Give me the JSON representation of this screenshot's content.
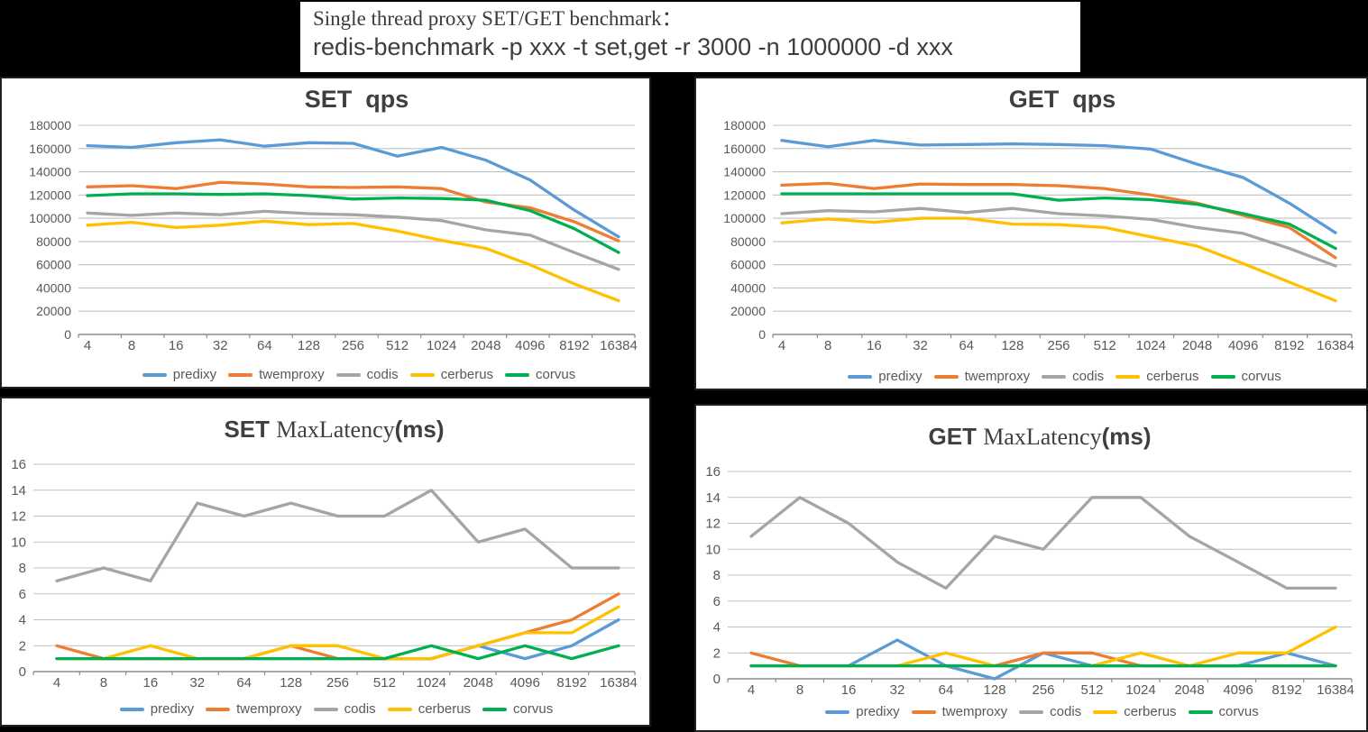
{
  "header": {
    "line1": "Single thread proxy SET/GET benchmark：",
    "line2": "redis-benchmark -p xxx -t set,get -r 3000 -n 1000000 -d xxx"
  },
  "colors": {
    "predixy": "#5B9BD5",
    "twemproxy": "#ED7D31",
    "codis": "#A5A5A5",
    "cerberus": "#FFC000",
    "corvus": "#00B050",
    "grid": "#C0C0C0",
    "axis": "#8C8C8C",
    "tick_label": "#595959",
    "title_text": "#3f3f3f",
    "legend_text": "#595959"
  },
  "legend": [
    "predixy",
    "twemproxy",
    "codis",
    "cerberus",
    "corvus"
  ],
  "chart_data": [
    {
      "id": "set-qps",
      "type": "line",
      "kind": "qps",
      "title_parts": [
        {
          "text": "SET  qps",
          "style": "bold"
        }
      ],
      "xlabel": "",
      "ylabel": "",
      "ylim": [
        0,
        180000
      ],
      "ytick_step": 20000,
      "grid": true,
      "legend_position": "bottom",
      "categories": [
        "4",
        "8",
        "16",
        "32",
        "64",
        "128",
        "256",
        "512",
        "1024",
        "2048",
        "4096",
        "8192",
        "16384"
      ],
      "series": [
        {
          "name": "predixy",
          "values": [
            162500,
            161000,
            165000,
            167500,
            162000,
            165000,
            164500,
            153500,
            161000,
            150000,
            133000,
            107000,
            84000
          ]
        },
        {
          "name": "twemproxy",
          "values": [
            127000,
            128000,
            125500,
            131000,
            129500,
            127000,
            126500,
            127000,
            125500,
            114000,
            109000,
            97000,
            80500
          ]
        },
        {
          "name": "codis",
          "values": [
            104500,
            102500,
            104500,
            103000,
            106000,
            104000,
            103000,
            101000,
            98000,
            90000,
            85500,
            70500,
            56000
          ]
        },
        {
          "name": "cerberus",
          "values": [
            94000,
            96500,
            92000,
            94000,
            97500,
            94500,
            95500,
            89000,
            81000,
            74000,
            60000,
            43500,
            29000
          ]
        },
        {
          "name": "corvus",
          "values": [
            119500,
            121000,
            121000,
            120500,
            121000,
            119500,
            116500,
            117500,
            117000,
            115500,
            106500,
            91000,
            70500
          ]
        }
      ]
    },
    {
      "id": "get-qps",
      "type": "line",
      "kind": "qps",
      "title_parts": [
        {
          "text": "GET  qps",
          "style": "bold"
        }
      ],
      "xlabel": "",
      "ylabel": "",
      "ylim": [
        0,
        180000
      ],
      "ytick_step": 20000,
      "grid": true,
      "legend_position": "bottom",
      "categories": [
        "4",
        "8",
        "16",
        "32",
        "64",
        "128",
        "256",
        "512",
        "1024",
        "2048",
        "4096",
        "8192",
        "16384"
      ],
      "series": [
        {
          "name": "predixy",
          "values": [
            167000,
            161500,
            167000,
            163000,
            163500,
            164000,
            163500,
            162500,
            159500,
            146500,
            135000,
            113000,
            87500
          ]
        },
        {
          "name": "twemproxy",
          "values": [
            128500,
            130000,
            125500,
            129500,
            129000,
            129000,
            128000,
            125500,
            120000,
            113000,
            102500,
            92000,
            66000
          ]
        },
        {
          "name": "codis",
          "values": [
            104000,
            106500,
            105500,
            108500,
            105000,
            108500,
            104000,
            102000,
            99000,
            92000,
            87000,
            74000,
            59000
          ]
        },
        {
          "name": "cerberus",
          "values": [
            96000,
            99500,
            96500,
            100000,
            100000,
            95000,
            94500,
            92000,
            84000,
            76000,
            61000,
            45000,
            29000
          ]
        },
        {
          "name": "corvus",
          "values": [
            121000,
            121000,
            121000,
            121000,
            121000,
            121000,
            115500,
            117500,
            116000,
            112000,
            104000,
            95000,
            74000
          ]
        }
      ]
    },
    {
      "id": "set-maxlatency",
      "type": "line",
      "kind": "lat",
      "title_parts": [
        {
          "text": "SET ",
          "style": "bold"
        },
        {
          "text": "MaxLatency",
          "style": "serif"
        },
        {
          "text": "(ms)",
          "style": "bold"
        }
      ],
      "xlabel": "",
      "ylabel": "",
      "ylim": [
        0,
        16
      ],
      "ytick_step": 2,
      "grid": true,
      "legend_position": "bottom",
      "categories": [
        "4",
        "8",
        "16",
        "32",
        "64",
        "128",
        "256",
        "512",
        "1024",
        "2048",
        "4096",
        "8192",
        "16384"
      ],
      "series": [
        {
          "name": "predixy",
          "values": [
            1,
            1,
            1,
            1,
            1,
            1,
            1,
            1,
            1,
            2,
            1,
            2,
            4
          ]
        },
        {
          "name": "twemproxy",
          "values": [
            2,
            1,
            1,
            1,
            1,
            2,
            1,
            1,
            1,
            2,
            3,
            4,
            6
          ]
        },
        {
          "name": "codis",
          "values": [
            7,
            8,
            7,
            13,
            12,
            13,
            12,
            12,
            14,
            10,
            11,
            8,
            8
          ]
        },
        {
          "name": "cerberus",
          "values": [
            1,
            1,
            2,
            1,
            1,
            2,
            2,
            1,
            1,
            2,
            3,
            3,
            5
          ]
        },
        {
          "name": "corvus",
          "values": [
            1,
            1,
            1,
            1,
            1,
            1,
            1,
            1,
            2,
            1,
            2,
            1,
            2
          ]
        }
      ]
    },
    {
      "id": "get-maxlatency",
      "type": "line",
      "kind": "lat",
      "title_parts": [
        {
          "text": "GET ",
          "style": "bold"
        },
        {
          "text": "MaxLatency",
          "style": "serif"
        },
        {
          "text": "(ms)",
          "style": "bold"
        }
      ],
      "xlabel": "",
      "ylabel": "",
      "ylim": [
        0,
        16
      ],
      "ytick_step": 2,
      "grid": true,
      "legend_position": "bottom",
      "categories": [
        "4",
        "8",
        "16",
        "32",
        "64",
        "128",
        "256",
        "512",
        "1024",
        "2048",
        "4096",
        "8192",
        "16384"
      ],
      "series": [
        {
          "name": "predixy",
          "values": [
            1,
            1,
            1,
            3,
            1,
            0,
            2,
            1,
            1,
            1,
            1,
            2,
            1
          ]
        },
        {
          "name": "twemproxy",
          "values": [
            2,
            1,
            1,
            1,
            1,
            1,
            2,
            2,
            1,
            1,
            1,
            1,
            1
          ]
        },
        {
          "name": "codis",
          "values": [
            11,
            14,
            12,
            9,
            7,
            11,
            10,
            14,
            14,
            11,
            9,
            7,
            7
          ]
        },
        {
          "name": "cerberus",
          "values": [
            1,
            1,
            1,
            1,
            2,
            1,
            1,
            1,
            2,
            1,
            2,
            2,
            4
          ]
        },
        {
          "name": "corvus",
          "values": [
            1,
            1,
            1,
            1,
            1,
            1,
            1,
            1,
            1,
            1,
            1,
            1,
            1
          ]
        }
      ]
    }
  ]
}
